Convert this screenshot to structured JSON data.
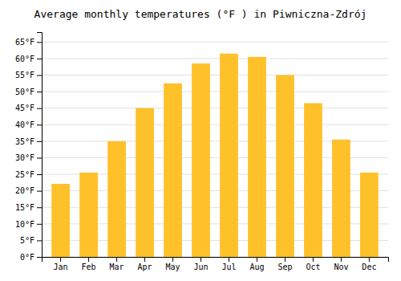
{
  "chart_data": {
    "type": "bar",
    "title": "Average monthly temperatures (°F ) in Piwniczna-Zdrój",
    "categories": [
      "Jan",
      "Feb",
      "Mar",
      "Apr",
      "May",
      "Jun",
      "Jul",
      "Aug",
      "Sep",
      "Oct",
      "Nov",
      "Dec"
    ],
    "values": [
      22.1,
      25.5,
      35.0,
      45.0,
      52.5,
      58.5,
      61.5,
      60.5,
      55.0,
      46.5,
      35.5,
      25.5
    ],
    "color": "#FFC12A",
    "ylim": [
      0,
      68
    ],
    "yticks": [
      {
        "value": 0,
        "label": "0°F"
      },
      {
        "value": 5,
        "label": "5°F"
      },
      {
        "value": 10,
        "label": "10°F"
      },
      {
        "value": 15,
        "label": "15°F"
      },
      {
        "value": 20,
        "label": "20°F"
      },
      {
        "value": 25,
        "label": "25°F"
      },
      {
        "value": 30,
        "label": "30°F"
      },
      {
        "value": 35,
        "label": "35°F"
      },
      {
        "value": 40,
        "label": "40°F"
      },
      {
        "value": 45,
        "label": "45°F"
      },
      {
        "value": 50,
        "label": "50°F"
      },
      {
        "value": 55,
        "label": "55°F"
      },
      {
        "value": 60,
        "label": "60°F"
      },
      {
        "value": 65,
        "label": "65°F"
      }
    ],
    "grid": true
  }
}
